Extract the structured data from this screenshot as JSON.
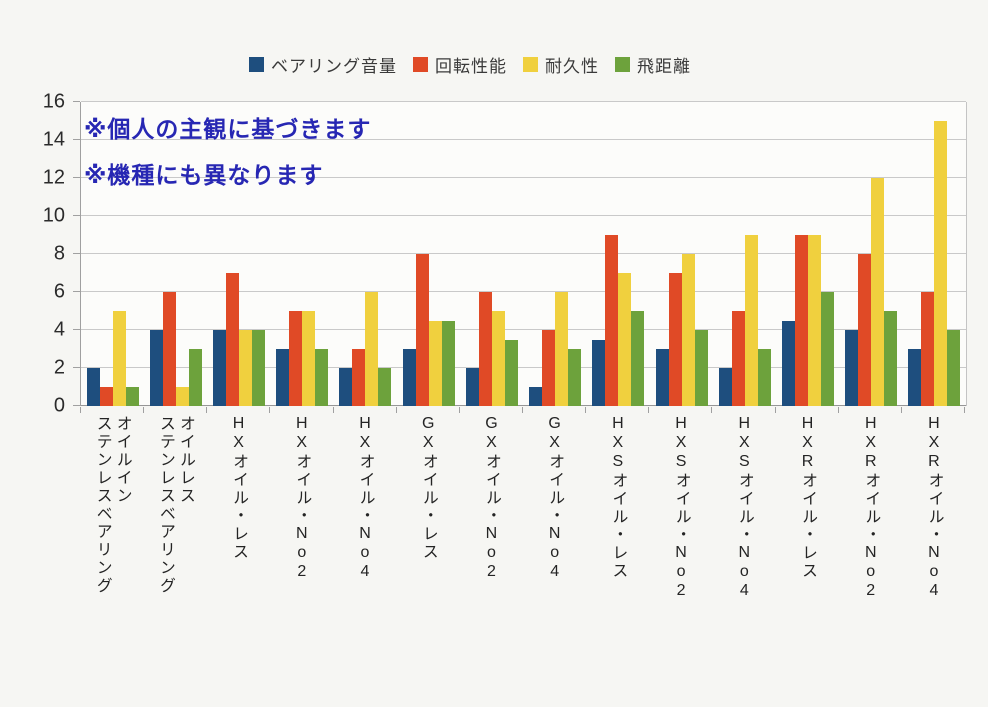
{
  "page": {
    "background": "#f6f6f3",
    "plot_background": "#fcfcfa",
    "gridline_color": "#c9c9c9"
  },
  "annotations": [
    "※個人の主観に基づきます",
    "※機種にも異なります"
  ],
  "annotation_color": "#2727b3",
  "chart_data": {
    "type": "bar",
    "title": "",
    "xlabel": "",
    "ylabel": "",
    "ylim": [
      0,
      16
    ],
    "yticks": [
      0,
      2,
      4,
      6,
      8,
      10,
      12,
      14,
      16
    ],
    "grid": true,
    "legend_position": "top",
    "categories": [
      {
        "label": "オイルインステンレスベアリング",
        "lines": [
          "オイルイン",
          "ステンレスベアリング"
        ]
      },
      {
        "label": "オイルレスステンレスベアリング",
        "lines": [
          "オイルレス",
          "ステンレスベアリング"
        ]
      },
      {
        "label": "HXオイル・レス",
        "lines": [
          "HXオイル・レス"
        ]
      },
      {
        "label": "HXオイル・No2",
        "lines": [
          "HXオイル・No2"
        ]
      },
      {
        "label": "HXオイル・No4",
        "lines": [
          "HXオイル・No4"
        ]
      },
      {
        "label": "GXオイル・レス",
        "lines": [
          "GXオイル・レス"
        ]
      },
      {
        "label": "GXオイル・No2",
        "lines": [
          "GXオイル・No2"
        ]
      },
      {
        "label": "GXオイル・No4",
        "lines": [
          "GXオイル・No4"
        ]
      },
      {
        "label": "HXSオイル・レス",
        "lines": [
          "HXSオイル・レス"
        ]
      },
      {
        "label": "HXSオイル・No2",
        "lines": [
          "HXSオイル・No2"
        ]
      },
      {
        "label": "HXSオイル・No4",
        "lines": [
          "HXSオイル・No4"
        ]
      },
      {
        "label": "HXRオイル・レス",
        "lines": [
          "HXRオイル・レス"
        ]
      },
      {
        "label": "HXRオイル・No2",
        "lines": [
          "HXRオイル・No2"
        ]
      },
      {
        "label": "HXRオイル・No4",
        "lines": [
          "HXRオイル・No4"
        ]
      }
    ],
    "series": [
      {
        "name": "ベアリング音量",
        "color": "#1e4e7e",
        "values": [
          2,
          4,
          4,
          3,
          2,
          3,
          2,
          1,
          3.5,
          3,
          2,
          4.5,
          4,
          3
        ]
      },
      {
        "name": "回転性能",
        "color": "#e04a26",
        "values": [
          1,
          6,
          7,
          5,
          3,
          8,
          6,
          4,
          9,
          7,
          5,
          9,
          8,
          6
        ]
      },
      {
        "name": "耐久性",
        "color": "#f0d03e",
        "values": [
          5,
          1,
          4,
          5,
          6,
          4.5,
          5,
          6,
          7,
          8,
          9,
          9,
          12,
          15
        ]
      },
      {
        "name": "飛距離",
        "color": "#6da23c",
        "values": [
          1,
          3,
          4,
          3,
          2,
          4.5,
          3.5,
          3,
          5,
          4,
          3,
          6,
          5,
          4
        ]
      }
    ]
  }
}
